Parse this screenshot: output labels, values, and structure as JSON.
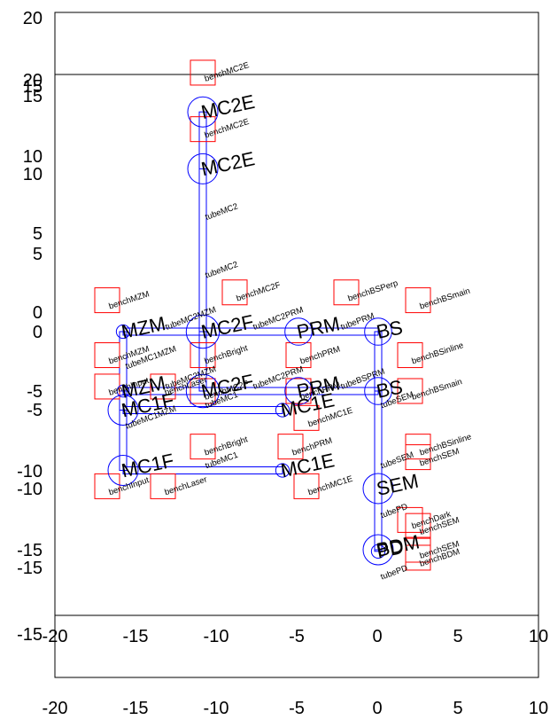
{
  "diagram": {
    "colors": {
      "optic": "#0000ff",
      "bench": "#ff0000",
      "axis": "#000000",
      "background": "#ffffff"
    },
    "axes": {
      "bottom_ticks": [
        "-20",
        "-15",
        "-10",
        "-5",
        "0",
        "5",
        "10"
      ],
      "left_ticks_outer": [
        "20",
        "15",
        "10",
        "5",
        "0",
        "-5",
        "-10",
        "-15"
      ],
      "inner_x_ticks": [
        "-20",
        "-15",
        "-10",
        "-5",
        "0",
        "5",
        "10"
      ],
      "inner_y_ticks": [
        "20",
        "15",
        "10",
        "5",
        "0",
        "-5",
        "-10",
        "-15"
      ]
    },
    "optics_upper": [
      {
        "name": "MC2E",
        "x": -11,
        "y": 14,
        "r": 1.0
      },
      {
        "name": "MC2F",
        "x": -11,
        "y": 0,
        "r": 1.1
      },
      {
        "name": "MZM",
        "x": -16,
        "y": 0,
        "r": 0.45
      },
      {
        "name": "PRM",
        "x": -5,
        "y": 0,
        "r": 0.9
      },
      {
        "name": "BS",
        "x": 0,
        "y": 0,
        "r": 0.9
      },
      {
        "name": "MC1E",
        "x": -6,
        "y": -5,
        "r": 0.45
      },
      {
        "name": "MC1F",
        "x": -16,
        "y": -5,
        "r": 1.0
      },
      {
        "name": "SEM",
        "x": 0,
        "y": -10,
        "r": 1.0
      },
      {
        "name": "PD",
        "x": 0,
        "y": -14,
        "r": 0.45
      }
    ],
    "optics_lower": [
      {
        "name": "MC2E",
        "x": -11,
        "y": 14,
        "r": 1.0
      },
      {
        "name": "MC2F",
        "x": -11,
        "y": 0,
        "r": 1.1
      },
      {
        "name": "MZM",
        "x": -16,
        "y": 0,
        "r": 0.4
      },
      {
        "name": "PRM",
        "x": -5,
        "y": 0,
        "r": 0.9
      },
      {
        "name": "BS",
        "x": 0,
        "y": 0,
        "r": 0.9
      },
      {
        "name": "MC1E",
        "x": -6,
        "y": -5,
        "r": 0.45
      },
      {
        "name": "MC1F",
        "x": -16,
        "y": -5,
        "r": 1.0
      },
      {
        "name": "BDM",
        "x": 0,
        "y": -10,
        "r": 1.0
      }
    ],
    "benches_upper": [
      {
        "name": "benchMC2E",
        "x": -11,
        "y": 16.5
      },
      {
        "name": "benchMC2F",
        "x": -9,
        "y": 2.5
      },
      {
        "name": "benchMZM",
        "x": -17,
        "y": 2
      },
      {
        "name": "benchBSPerp",
        "x": -2,
        "y": 2.5
      },
      {
        "name": "benchBSmain",
        "x": 2.5,
        "y": 2
      },
      {
        "name": "benchBright",
        "x": -11,
        "y": -1.5
      },
      {
        "name": "benchMZM",
        "x": -17,
        "y": -1.5
      },
      {
        "name": "benchPRM",
        "x": -5,
        "y": -1.5
      },
      {
        "name": "benchBSinline",
        "x": 2,
        "y": -1.5
      },
      {
        "name": "benchMC1E",
        "x": -4.5,
        "y": -5.5
      },
      {
        "name": "benchInput",
        "x": -17,
        "y": -3.5
      },
      {
        "name": "benchLaser",
        "x": -13.5,
        "y": -3.5
      },
      {
        "name": "benchSEM",
        "x": 2.5,
        "y": -8
      },
      {
        "name": "benchDark",
        "x": 2,
        "y": -12
      }
    ],
    "benches_lower": [
      {
        "name": "benchMC2E",
        "x": -11,
        "y": 16.5
      },
      {
        "name": "benchMC2F",
        "x": -11,
        "y": 0
      },
      {
        "name": "benchPRM",
        "x": -5,
        "y": 0
      },
      {
        "name": "benchBSmain",
        "x": 2,
        "y": 0
      },
      {
        "name": "benchBright",
        "x": -11,
        "y": -3.5
      },
      {
        "name": "benchPRM",
        "x": -5.5,
        "y": -3.5
      },
      {
        "name": "benchBSinline",
        "x": 2.5,
        "y": -3.5
      },
      {
        "name": "benchInput",
        "x": -17,
        "y": -6
      },
      {
        "name": "benchLaser",
        "x": -13.5,
        "y": -6
      },
      {
        "name": "benchMC1E",
        "x": -4.5,
        "y": -6
      },
      {
        "name": "benchSEM",
        "x": 2.5,
        "y": -8.5
      },
      {
        "name": "benchBDM",
        "x": 2.5,
        "y": -10.5
      },
      {
        "name": "benchSEM",
        "x": 2.5,
        "y": -10
      }
    ],
    "tubes_upper": [
      {
        "name": "tubeMC2",
        "x": -11,
        "y": 7
      },
      {
        "name": "tubeMC2MZM",
        "x": -13.5,
        "y": 0
      },
      {
        "name": "tubeMC2PRM",
        "x": -8,
        "y": 0
      },
      {
        "name": "tubePRM",
        "x": -2.5,
        "y": 0
      },
      {
        "name": "tubeMC1",
        "x": -11,
        "y": -5
      },
      {
        "name": "tubeMC1MZM",
        "x": -16,
        "y": -2.5
      },
      {
        "name": "tubeSEM",
        "x": 0,
        "y": -5
      },
      {
        "name": "tubePD",
        "x": 0,
        "y": -12
      }
    ],
    "tubes_lower": [
      {
        "name": "tubeMC2",
        "x": -11,
        "y": 7
      },
      {
        "name": "tubeMC2MZM",
        "x": -13.5,
        "y": 0
      },
      {
        "name": "tubeMC2PRM",
        "x": -8,
        "y": 0
      },
      {
        "name": "tubeBSPRM",
        "x": -2.5,
        "y": 0
      },
      {
        "name": "tubeMC1",
        "x": -11,
        "y": -5
      },
      {
        "name": "tubeMC1MZM",
        "x": -16,
        "y": -2.5
      },
      {
        "name": "tubeSEM",
        "x": 0,
        "y": -5
      },
      {
        "name": "tubePD",
        "x": 0,
        "y": -12
      }
    ]
  }
}
